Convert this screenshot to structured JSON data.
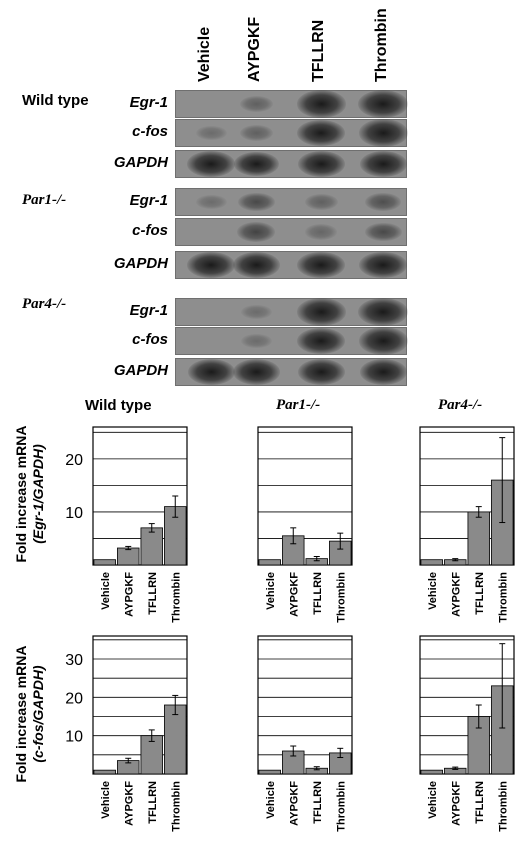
{
  "lanes": [
    "Vehicle",
    "AYPGKF",
    "TFLLRN",
    "Thrombin"
  ],
  "blots": [
    {
      "genotype": "Wild type",
      "italic": false,
      "rows": [
        {
          "gene": "Egr-1",
          "intensity": [
            0.02,
            0.15,
            0.95,
            1.0
          ]
        },
        {
          "gene": "c-fos",
          "intensity": [
            0.05,
            0.15,
            0.9,
            0.95
          ]
        },
        {
          "gene": "GAPDH",
          "intensity": [
            0.9,
            0.75,
            0.85,
            0.85
          ]
        }
      ]
    },
    {
      "genotype": "Par1-/-",
      "italic": true,
      "rows": [
        {
          "gene": "Egr-1",
          "intensity": [
            0.05,
            0.35,
            0.15,
            0.3
          ]
        },
        {
          "gene": "c-fos",
          "intensity": [
            0.02,
            0.4,
            0.1,
            0.35
          ]
        },
        {
          "gene": "GAPDH",
          "intensity": [
            0.9,
            0.85,
            0.9,
            0.9
          ]
        }
      ]
    },
    {
      "genotype": "Par4-/-",
      "italic": true,
      "rows": [
        {
          "gene": "Egr-1",
          "intensity": [
            0.02,
            0.05,
            0.95,
            1.0
          ]
        },
        {
          "gene": "c-fos",
          "intensity": [
            0.02,
            0.05,
            0.9,
            0.95
          ]
        },
        {
          "gene": "GAPDH",
          "intensity": [
            0.85,
            0.85,
            0.85,
            0.85
          ]
        }
      ]
    }
  ],
  "chart_rows": [
    {
      "ylabel_line1": "Fold increase mRNA",
      "ylabel_line2": "(Egr-1/GAPDH)"
    },
    {
      "ylabel_line1": "Fold increase mRNA",
      "ylabel_line2": "(c-fos/GAPDH)"
    }
  ],
  "panel_titles": [
    {
      "text": "Wild type",
      "italic": false
    },
    {
      "text": "Par1-/-",
      "italic": true
    },
    {
      "text": "Par4-/-",
      "italic": true
    }
  ],
  "chart_data": [
    {
      "type": "bar",
      "title": "Wild type",
      "ylabel": "Fold increase mRNA (Egr-1/GAPDH)",
      "categories": [
        "Vehicle",
        "AYPGKF",
        "TFLLRN",
        "Thrombin"
      ],
      "values": [
        1,
        3.2,
        7,
        11
      ],
      "errors": [
        0,
        0.3,
        0.8,
        2
      ],
      "ylim": [
        0,
        26
      ],
      "yticks": [
        10,
        20
      ],
      "grid": true
    },
    {
      "type": "bar",
      "title": "Par1-/-",
      "ylabel": "Fold increase mRNA (Egr-1/GAPDH)",
      "categories": [
        "Vehicle",
        "AYPGKF",
        "TFLLRN",
        "Thrombin"
      ],
      "values": [
        1,
        5.5,
        1.2,
        4.5
      ],
      "errors": [
        0,
        1.5,
        0.4,
        1.5
      ],
      "ylim": [
        0,
        26
      ],
      "yticks": [],
      "grid": true
    },
    {
      "type": "bar",
      "title": "Par4-/-",
      "ylabel": "Fold increase mRNA (Egr-1/GAPDH)",
      "categories": [
        "Vehicle",
        "AYPGKF",
        "TFLLRN",
        "Thrombin"
      ],
      "values": [
        1,
        1,
        10,
        16
      ],
      "errors": [
        0,
        0.2,
        1,
        8
      ],
      "ylim": [
        0,
        26
      ],
      "yticks": [],
      "grid": true
    },
    {
      "type": "bar",
      "title": "Wild type",
      "ylabel": "Fold increase mRNA (c-fos/GAPDH)",
      "categories": [
        "Vehicle",
        "AYPGKF",
        "TFLLRN",
        "Thrombin"
      ],
      "values": [
        1,
        3.5,
        10,
        18
      ],
      "errors": [
        0,
        0.6,
        1.5,
        2.5
      ],
      "ylim": [
        0,
        36
      ],
      "yticks": [
        10,
        20,
        30
      ],
      "grid": true
    },
    {
      "type": "bar",
      "title": "Par1-/-",
      "ylabel": "Fold increase mRNA (c-fos/GAPDH)",
      "categories": [
        "Vehicle",
        "AYPGKF",
        "TFLLRN",
        "Thrombin"
      ],
      "values": [
        1,
        6,
        1.5,
        5.5
      ],
      "errors": [
        0,
        1.3,
        0.4,
        1.2
      ],
      "ylim": [
        0,
        36
      ],
      "yticks": [],
      "grid": true
    },
    {
      "type": "bar",
      "title": "Par4-/-",
      "ylabel": "Fold increase mRNA (c-fos/GAPDH)",
      "categories": [
        "Vehicle",
        "AYPGKF",
        "TFLLRN",
        "Thrombin"
      ],
      "values": [
        1,
        1.5,
        15,
        23
      ],
      "errors": [
        0,
        0.3,
        3,
        11
      ],
      "ylim": [
        0,
        36
      ],
      "yticks": [],
      "grid": true
    }
  ],
  "colors": {
    "bar": "#8a8a8a",
    "blot_bg": "#8e8e8e",
    "band": "#141414"
  }
}
